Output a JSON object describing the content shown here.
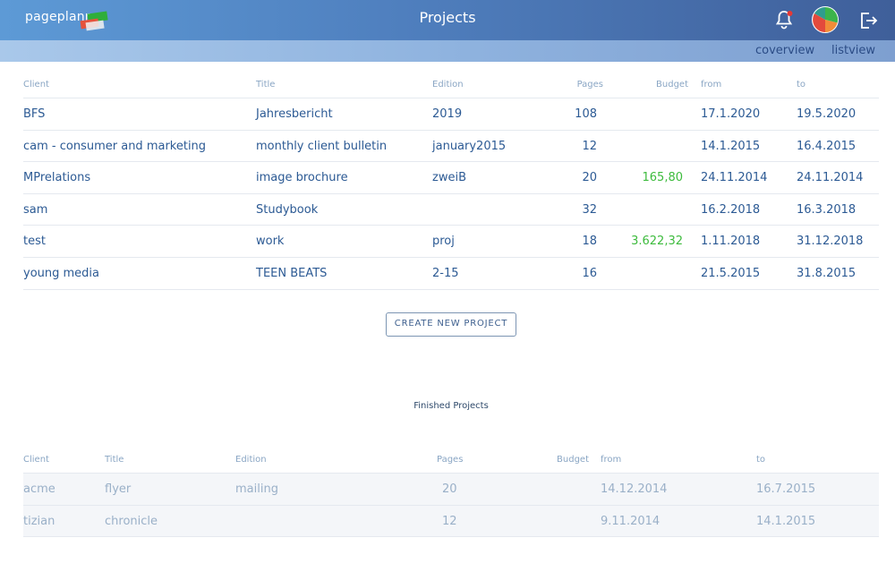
{
  "header": {
    "logo_text": "pageplanr",
    "title": "Projects",
    "icons": [
      "bell-icon",
      "pie-chart-icon",
      "logout-icon"
    ],
    "accent_gradient": [
      "#5d9ad6",
      "#3f5f9a"
    ]
  },
  "views": {
    "coverview": "coverview",
    "listview": "listview"
  },
  "active": {
    "headers": {
      "client": "Client",
      "title": "Title",
      "edition": "Edition",
      "pages": "Pages",
      "budget": "Budget",
      "from": "from",
      "to": "to"
    },
    "rows": [
      {
        "client": "BFS",
        "title": "Jahresbericht",
        "edition": "2019",
        "pages": "108",
        "budget": "",
        "from": "17.1.2020",
        "to": "19.5.2020"
      },
      {
        "client": "cam - consumer and marketing",
        "title": "monthly client bulletin",
        "edition": "january2015",
        "pages": "12",
        "budget": "",
        "from": "14.1.2015",
        "to": "16.4.2015"
      },
      {
        "client": "MPrelations",
        "title": "image brochure",
        "edition": "zweiB",
        "pages": "20",
        "budget": "165,80",
        "from": "24.11.2014",
        "to": "24.11.2014"
      },
      {
        "client": "sam",
        "title": "Studybook",
        "edition": "",
        "pages": "32",
        "budget": "",
        "from": "16.2.2018",
        "to": "16.3.2018"
      },
      {
        "client": "test",
        "title": "work",
        "edition": "proj",
        "pages": "18",
        "budget": "3.622,32",
        "from": "1.11.2018",
        "to": "31.12.2018"
      },
      {
        "client": "young media",
        "title": "TEEN BEATS",
        "edition": "2-15",
        "pages": "16",
        "budget": "",
        "from": "21.5.2015",
        "to": "31.8.2015"
      }
    ]
  },
  "create_button": "CREATE NEW PROJECT",
  "finished": {
    "section_title": "Finished Projects",
    "headers": {
      "client": "Client",
      "title": "Title",
      "edition": "Edition",
      "pages": "Pages",
      "budget": "Budget",
      "from": "from",
      "to": "to"
    },
    "rows": [
      {
        "client": "acme",
        "title": "flyer",
        "edition": "mailing",
        "pages": "20",
        "budget": "",
        "from": "14.12.2014",
        "to": "16.7.2015"
      },
      {
        "client": "tizian",
        "title": "chronicle",
        "edition": "",
        "pages": "12",
        "budget": "",
        "from": "9.11.2014",
        "to": "14.1.2015"
      }
    ]
  }
}
